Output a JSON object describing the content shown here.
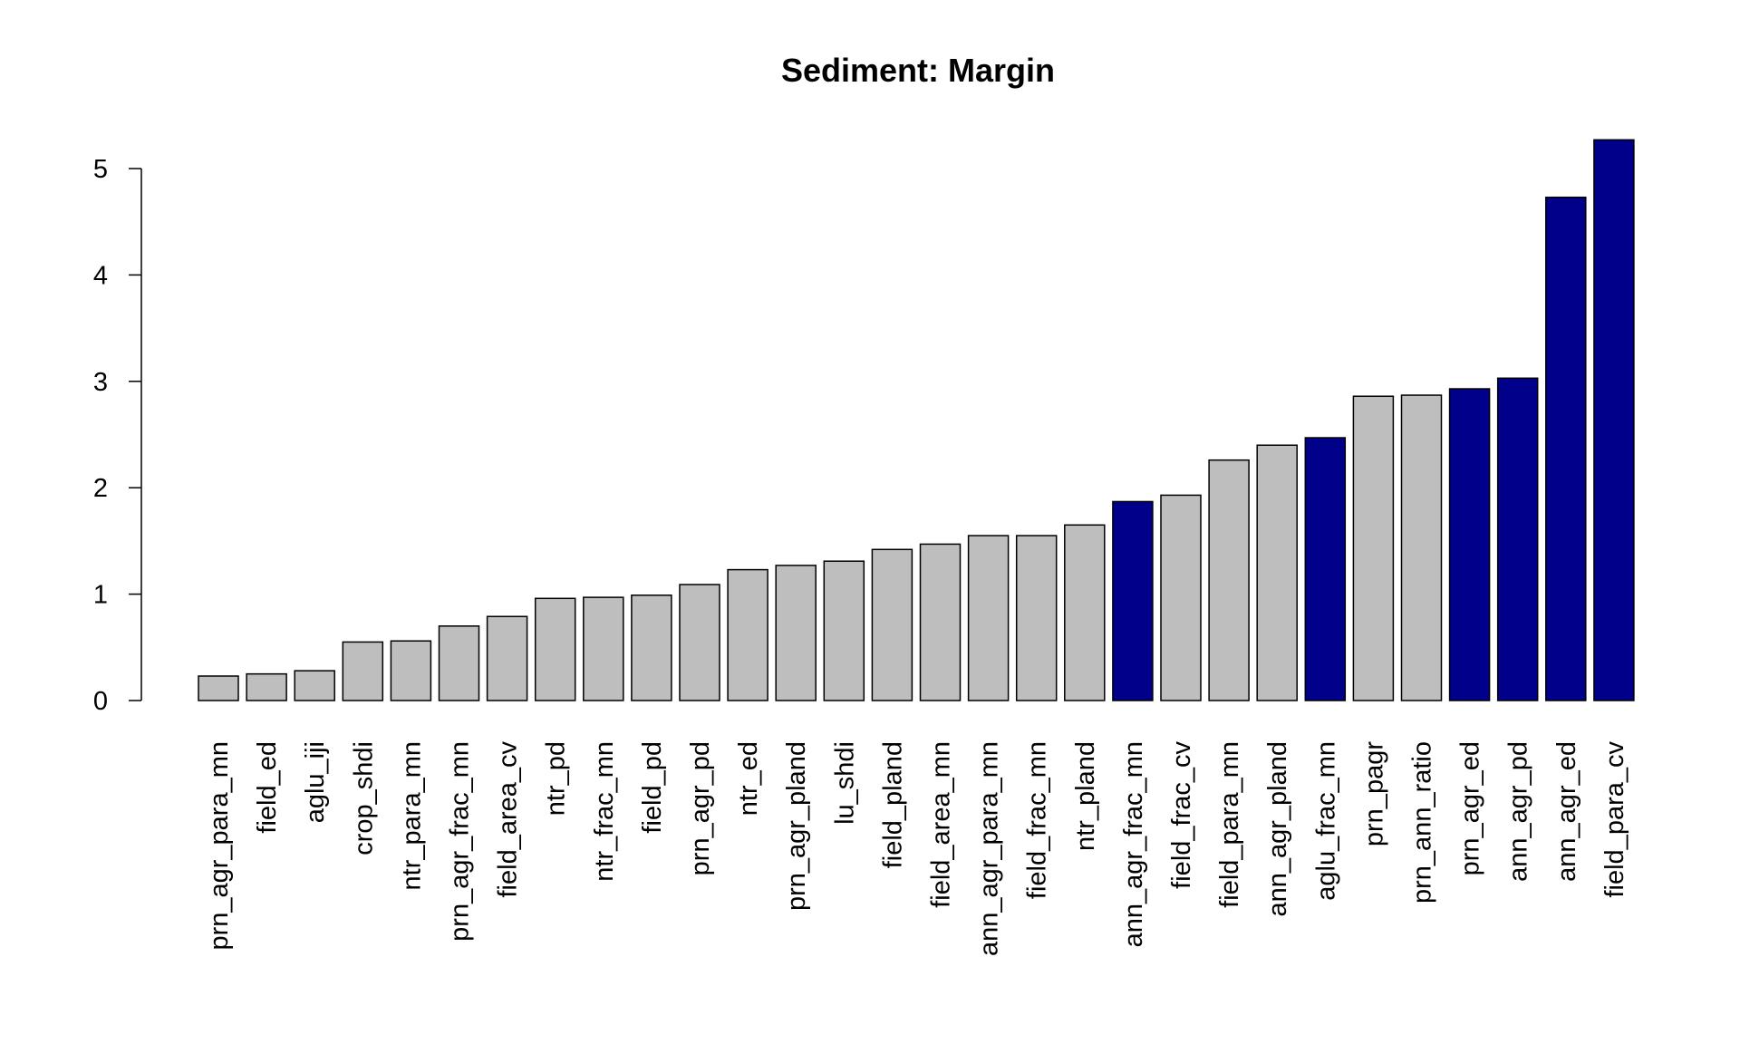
{
  "chart_data": {
    "type": "bar",
    "title": "Sediment: Margin",
    "xlabel": "",
    "ylabel": "",
    "ylim": [
      0,
      5.3
    ],
    "yticks": [
      0,
      1,
      2,
      3,
      4,
      5
    ],
    "grid": false,
    "colors": {
      "default": "#bebebe",
      "highlight": "#00008b"
    },
    "categories": [
      "prn_agr_para_mn",
      "field_ed",
      "aglu_iji",
      "crop_shdi",
      "ntr_para_mn",
      "prn_agr_frac_mn",
      "field_area_cv",
      "ntr_pd",
      "ntr_frac_mn",
      "field_pd",
      "prn_agr_pd",
      "ntr_ed",
      "prn_agr_pland",
      "lu_shdi",
      "field_pland",
      "field_area_mn",
      "ann_agr_para_mn",
      "field_frac_mn",
      "ntr_pland",
      "ann_agr_frac_mn",
      "field_frac_cv",
      "field_para_mn",
      "ann_agr_pland",
      "aglu_frac_mn",
      "prn_pagr",
      "prn_ann_ratio",
      "prn_agr_ed",
      "ann_agr_pd",
      "ann_agr_ed",
      "field_para_cv"
    ],
    "values": [
      0.23,
      0.25,
      0.28,
      0.55,
      0.56,
      0.7,
      0.79,
      0.96,
      0.97,
      0.99,
      1.09,
      1.23,
      1.27,
      1.31,
      1.42,
      1.47,
      1.55,
      1.55,
      1.65,
      1.87,
      1.93,
      2.26,
      2.4,
      2.47,
      2.86,
      2.87,
      2.93,
      3.03,
      4.73,
      5.27
    ],
    "highlighted": [
      false,
      false,
      false,
      false,
      false,
      false,
      false,
      false,
      false,
      false,
      false,
      false,
      false,
      false,
      false,
      false,
      false,
      false,
      false,
      true,
      false,
      false,
      false,
      true,
      false,
      false,
      true,
      true,
      true,
      true
    ]
  }
}
